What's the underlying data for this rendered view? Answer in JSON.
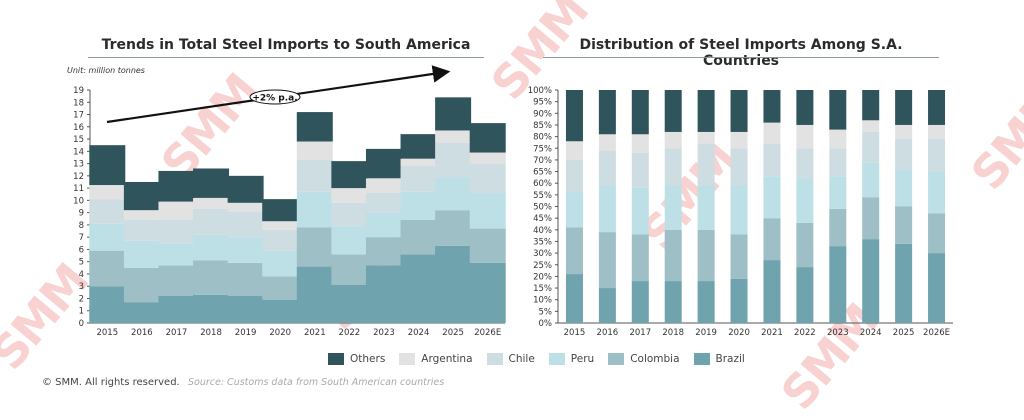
{
  "footer": {
    "copyright": "© SMM. All rights reserved.",
    "source": "Source: Customs data from South American countries"
  },
  "watermark": "SMM",
  "legend": [
    {
      "label": "Others",
      "color": "#2f545b"
    },
    {
      "label": "Argentina",
      "color": "#e2e2e2"
    },
    {
      "label": "Chile",
      "color": "#cddde1"
    },
    {
      "label": "Peru",
      "color": "#bde0e6"
    },
    {
      "label": "Colombia",
      "color": "#9dbfc5"
    },
    {
      "label": "Brazil",
      "color": "#6fa3ad"
    }
  ],
  "chart_data": [
    {
      "type": "bar",
      "stacked": true,
      "title": "Trends in Total Steel Imports to South America",
      "unit_label": "Unit: million tonnes",
      "xlabel": "",
      "ylabel": "",
      "ylim": [
        0,
        19
      ],
      "yticks": [
        0,
        1,
        2,
        3,
        4,
        5,
        6,
        7,
        8,
        9,
        10,
        11,
        12,
        13,
        14,
        15,
        16,
        17,
        18,
        19
      ],
      "categories": [
        "2015",
        "2016",
        "2017",
        "2018",
        "2019",
        "2020",
        "2021",
        "2022",
        "2023",
        "2024",
        "2025",
        "2026E"
      ],
      "annotation": {
        "text": "+2% p.a.",
        "type": "trend-arrow"
      },
      "series": [
        {
          "name": "Brazil",
          "values": [
            3.0,
            1.7,
            2.2,
            2.3,
            2.2,
            1.9,
            4.6,
            3.1,
            4.7,
            5.6,
            6.3,
            4.9
          ]
        },
        {
          "name": "Colombia",
          "values": [
            2.9,
            2.8,
            2.5,
            2.8,
            2.7,
            1.9,
            3.2,
            2.5,
            2.3,
            2.8,
            2.9,
            2.8
          ]
        },
        {
          "name": "Peru",
          "values": [
            2.2,
            2.2,
            1.8,
            2.1,
            2.1,
            2.1,
            2.9,
            2.3,
            2.0,
            2.3,
            2.7,
            2.9
          ]
        },
        {
          "name": "Chile",
          "values": [
            2.0,
            1.7,
            1.9,
            2.1,
            2.1,
            1.7,
            2.6,
            1.9,
            1.6,
            2.1,
            2.8,
            2.4
          ]
        },
        {
          "name": "Argentina",
          "values": [
            1.15,
            0.8,
            1.5,
            0.9,
            0.7,
            0.7,
            1.5,
            1.2,
            1.2,
            0.6,
            1.0,
            0.9
          ]
        },
        {
          "name": "Others",
          "values": [
            3.25,
            2.3,
            2.5,
            2.4,
            2.2,
            1.8,
            2.4,
            2.2,
            2.4,
            2.0,
            2.7,
            2.4
          ]
        }
      ]
    },
    {
      "type": "bar",
      "stacked": true,
      "percent": true,
      "title": "Distribution of Steel Imports Among S.A. Countries",
      "xlabel": "",
      "ylabel": "",
      "ylim": [
        0,
        100
      ],
      "yticks": [
        "0%",
        "5%",
        "10%",
        "15%",
        "20%",
        "25%",
        "30%",
        "35%",
        "40%",
        "45%",
        "50%",
        "55%",
        "60%",
        "65%",
        "70%",
        "75%",
        "80%",
        "85%",
        "90%",
        "95%",
        "100%"
      ],
      "categories": [
        "2015",
        "2016",
        "2017",
        "2018",
        "2019",
        "2020",
        "2021",
        "2022",
        "2023",
        "2024",
        "2025",
        "2026E"
      ],
      "series": [
        {
          "name": "Brazil",
          "values": [
            21,
            15,
            18,
            18,
            18,
            19,
            27,
            24,
            33,
            36,
            34,
            30
          ]
        },
        {
          "name": "Colombia",
          "values": [
            20,
            24,
            20,
            22,
            22,
            19,
            18,
            19,
            16,
            18,
            16,
            17
          ]
        },
        {
          "name": "Peru",
          "values": [
            15,
            20,
            20,
            19,
            19,
            21,
            18,
            19,
            14,
            15,
            16,
            18
          ]
        },
        {
          "name": "Chile",
          "values": [
            14,
            15,
            15,
            16,
            18,
            16,
            14,
            13,
            12,
            13,
            13,
            14
          ]
        },
        {
          "name": "Argentina",
          "values": [
            8,
            7,
            8,
            7,
            5,
            7,
            9,
            10,
            8,
            5,
            6,
            6
          ]
        },
        {
          "name": "Others",
          "values": [
            22,
            19,
            19,
            18,
            18,
            18,
            14,
            15,
            17,
            13,
            15,
            15
          ]
        }
      ]
    }
  ]
}
